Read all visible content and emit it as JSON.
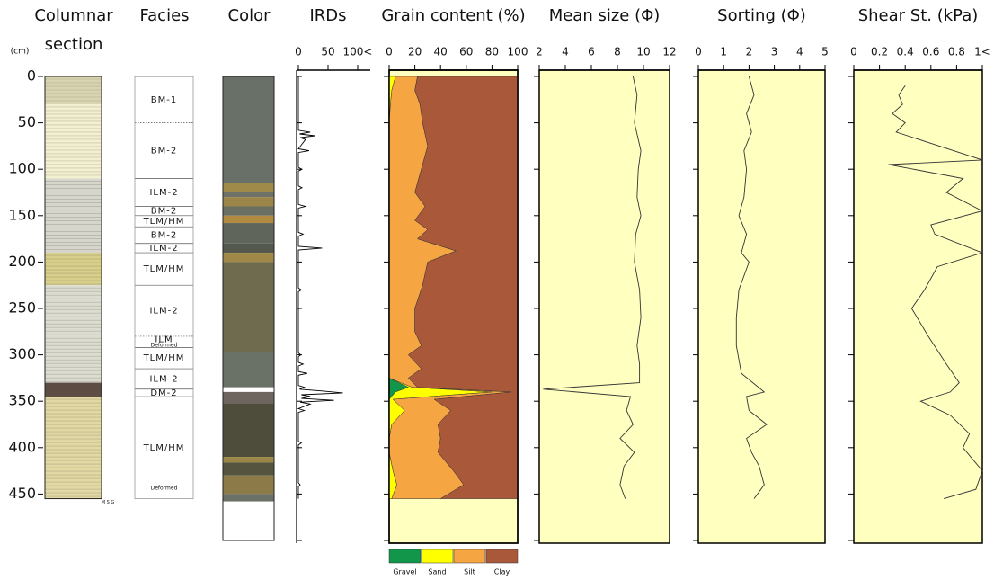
{
  "depth_axis": {
    "unit": "(cm)",
    "ylim": [
      0,
      500
    ],
    "yticks": [
      0,
      50,
      100,
      150,
      200,
      250,
      300,
      350,
      400,
      450
    ]
  },
  "columnar_section": {
    "title": [
      "Columnar",
      "section"
    ],
    "scale_label": "M S G",
    "layers": [
      {
        "top": 0,
        "bottom": 30,
        "color": "#d9d4b0"
      },
      {
        "top": 30,
        "bottom": 110,
        "color": "#f3f0d2"
      },
      {
        "top": 110,
        "bottom": 190,
        "color": "#d6d6cc"
      },
      {
        "top": 190,
        "bottom": 225,
        "color": "#d8cf8a"
      },
      {
        "top": 225,
        "bottom": 330,
        "color": "#dcdcd0"
      },
      {
        "top": 330,
        "bottom": 345,
        "color": "#5c4c42"
      },
      {
        "top": 345,
        "bottom": 455,
        "color": "#e2d8a4"
      }
    ]
  },
  "facies": {
    "title": "Facies",
    "units": [
      {
        "label": "BM-1",
        "top": 0,
        "bottom": 50
      },
      {
        "label": "BM-2",
        "top": 50,
        "bottom": 110,
        "dotted_top": true
      },
      {
        "label": "ILM-2",
        "top": 110,
        "bottom": 140
      },
      {
        "label": "BM-2",
        "top": 140,
        "bottom": 150
      },
      {
        "label": "TLM/HM",
        "top": 150,
        "bottom": 162
      },
      {
        "label": "BM-2",
        "top": 162,
        "bottom": 180
      },
      {
        "label": "ILM-2",
        "top": 180,
        "bottom": 190
      },
      {
        "label": "TLM/HM",
        "top": 190,
        "bottom": 225
      },
      {
        "label": "ILM-2",
        "top": 225,
        "bottom": 280
      },
      {
        "label": "ILM",
        "note": "Deformed",
        "top": 280,
        "bottom": 292,
        "dotted_top": true
      },
      {
        "label": "TLM/HM",
        "top": 292,
        "bottom": 315
      },
      {
        "label": "ILM-2",
        "top": 315,
        "bottom": 337
      },
      {
        "label": "DM-2",
        "top": 337,
        "bottom": 345
      },
      {
        "label": "TLM/HM",
        "note": "Deformed",
        "top": 345,
        "bottom": 455
      }
    ]
  },
  "color_column": {
    "title": "Color",
    "segments": [
      {
        "top": 0,
        "bottom": 115,
        "color": "#697067"
      },
      {
        "top": 115,
        "bottom": 125,
        "color": "#a08a4a"
      },
      {
        "top": 125,
        "bottom": 130,
        "color": "#6f7266"
      },
      {
        "top": 130,
        "bottom": 140,
        "color": "#9c8548"
      },
      {
        "top": 140,
        "bottom": 150,
        "color": "#6a6f63"
      },
      {
        "top": 150,
        "bottom": 158,
        "color": "#b08a40"
      },
      {
        "top": 158,
        "bottom": 180,
        "color": "#5f655a"
      },
      {
        "top": 180,
        "bottom": 190,
        "color": "#55584d"
      },
      {
        "top": 190,
        "bottom": 200,
        "color": "#a08848"
      },
      {
        "top": 200,
        "bottom": 297,
        "color": "#6e6b4f"
      },
      {
        "top": 297,
        "bottom": 335,
        "color": "#6a7268"
      },
      {
        "top": 335,
        "bottom": 340,
        "color": "#ffffff"
      },
      {
        "top": 340,
        "bottom": 352,
        "color": "#6e6560"
      },
      {
        "top": 352,
        "bottom": 410,
        "color": "#4e4d3c"
      },
      {
        "top": 410,
        "bottom": 416,
        "color": "#9c8646"
      },
      {
        "top": 416,
        "bottom": 430,
        "color": "#55553f"
      },
      {
        "top": 430,
        "bottom": 450,
        "color": "#8c7a48"
      },
      {
        "top": 450,
        "bottom": 458,
        "color": "#6a7268"
      },
      {
        "top": 458,
        "bottom": 500,
        "color": "#ffffff"
      }
    ]
  },
  "chart_data": [
    {
      "type": "line",
      "title": "IRDs",
      "frame": false,
      "xlim": [
        0,
        100
      ],
      "xticks": [
        0,
        50,
        {
          "value": 100,
          "label": "100<"
        }
      ],
      "ylim": [
        0,
        500
      ],
      "yticks": [
        0,
        50,
        100,
        150,
        200,
        250,
        300,
        350,
        400,
        450,
        500
      ],
      "depth": [
        0,
        58,
        60,
        62,
        64,
        66,
        68,
        78,
        80,
        82,
        98,
        100,
        102,
        118,
        120,
        122,
        138,
        140,
        142,
        168,
        170,
        172,
        183,
        185,
        187,
        228,
        230,
        232,
        298,
        300,
        302,
        308,
        310,
        312,
        318,
        320,
        322,
        333,
        335,
        337,
        339,
        341,
        343,
        345,
        347,
        349,
        351,
        353,
        358,
        360,
        362,
        393,
        395,
        397,
        438,
        440,
        442,
        455
      ],
      "color": "#000000",
      "values": [
        0,
        0,
        20,
        2,
        28,
        3,
        12,
        0,
        18,
        0,
        0,
        6,
        0,
        0,
        6,
        0,
        0,
        12,
        0,
        0,
        8,
        0,
        0,
        40,
        0,
        0,
        5,
        0,
        0,
        4,
        0,
        0,
        8,
        0,
        0,
        15,
        0,
        0,
        10,
        2,
        40,
        75,
        5,
        20,
        5,
        60,
        3,
        20,
        0,
        10,
        0,
        0,
        5,
        0,
        0,
        3,
        0,
        0
      ]
    },
    {
      "type": "area",
      "title": "Grain content (%)",
      "frame": true,
      "background": "#ffffc0",
      "xlim": [
        0,
        100
      ],
      "xticks": [
        0,
        20,
        40,
        60,
        80,
        100
      ],
      "ylim": [
        0,
        500
      ],
      "yticks": [
        0,
        50,
        100,
        150,
        200,
        250,
        300,
        350,
        400,
        450,
        500
      ],
      "depth": [
        0,
        15,
        30,
        50,
        75,
        100,
        125,
        140,
        155,
        165,
        175,
        188,
        200,
        225,
        250,
        275,
        290,
        300,
        315,
        325,
        335,
        340,
        348,
        360,
        375,
        390,
        405,
        425,
        440,
        455
      ],
      "series": [
        {
          "name": "Gravel",
          "color": "#12964a",
          "values": [
            0,
            0,
            0,
            0,
            0,
            0,
            0,
            0,
            0,
            0,
            0,
            0,
            0,
            0,
            0,
            0,
            0,
            0,
            0,
            0,
            15,
            5,
            0,
            0,
            0,
            0,
            0,
            0,
            0,
            0
          ]
        },
        {
          "name": "Sand",
          "color": "#ffff00",
          "values": [
            5,
            2,
            1,
            0,
            0,
            0,
            0,
            0,
            0,
            0,
            0,
            0,
            0,
            0,
            0,
            0,
            0,
            0,
            0,
            0,
            3,
            75,
            3,
            12,
            2,
            0,
            0,
            3,
            6,
            2
          ]
        },
        {
          "name": "Silt",
          "color": "#f5a542",
          "values": [
            17,
            18,
            23,
            26,
            30,
            25,
            20,
            28,
            20,
            30,
            22,
            52,
            30,
            26,
            20,
            20,
            25,
            15,
            25,
            15,
            4,
            15,
            32,
            36,
            36,
            40,
            38,
            47,
            52,
            38
          ]
        },
        {
          "name": "Clay",
          "color": "#a9583a",
          "values": [
            78,
            80,
            76,
            74,
            70,
            75,
            80,
            72,
            80,
            70,
            78,
            48,
            70,
            74,
            80,
            80,
            75,
            85,
            75,
            85,
            78,
            5,
            65,
            52,
            62,
            60,
            62,
            50,
            42,
            60
          ]
        }
      ]
    },
    {
      "type": "line",
      "title": "Mean size (Φ)",
      "frame": true,
      "background": "#ffffc0",
      "xlim": [
        2,
        12
      ],
      "xticks": [
        2,
        4,
        6,
        8,
        10,
        12
      ],
      "ylim": [
        0,
        500
      ],
      "yticks": [
        0,
        50,
        100,
        150,
        200,
        250,
        300,
        350,
        400,
        450,
        500
      ],
      "depth": [
        0,
        20,
        50,
        80,
        100,
        130,
        150,
        170,
        200,
        230,
        260,
        290,
        310,
        330,
        337,
        345,
        360,
        375,
        390,
        405,
        420,
        440,
        455
      ],
      "color": "#333333",
      "values": [
        9.2,
        9.5,
        9.3,
        9.8,
        9.6,
        9.5,
        9.8,
        9.4,
        9.3,
        9.7,
        9.8,
        9.5,
        9.7,
        9.7,
        2.3,
        9.0,
        8.7,
        9.2,
        8.2,
        9.3,
        8.5,
        8.2,
        8.6
      ]
    },
    {
      "type": "line",
      "title": "Sorting (Φ)",
      "frame": true,
      "background": "#ffffc0",
      "xlim": [
        0,
        5
      ],
      "xticks": [
        0,
        1,
        2,
        3,
        4,
        5
      ],
      "ylim": [
        0,
        500
      ],
      "yticks": [
        0,
        50,
        100,
        150,
        200,
        250,
        300,
        350,
        400,
        450,
        500
      ],
      "depth": [
        0,
        20,
        40,
        60,
        80,
        100,
        130,
        150,
        170,
        190,
        200,
        230,
        260,
        290,
        320,
        340,
        345,
        360,
        375,
        390,
        405,
        420,
        440,
        455
      ],
      "color": "#333333",
      "values": [
        2.0,
        2.2,
        1.9,
        2.1,
        1.8,
        1.9,
        1.8,
        1.6,
        1.9,
        1.7,
        2.0,
        1.6,
        1.5,
        1.5,
        1.7,
        2.6,
        1.9,
        2.0,
        2.7,
        1.9,
        2.1,
        2.4,
        2.6,
        2.2
      ]
    },
    {
      "type": "line",
      "title": "Shear St. (kPa)",
      "frame": true,
      "background": "#ffffc0",
      "xlim": [
        0,
        1
      ],
      "xticks": [
        0,
        0.2,
        0.4,
        0.6,
        0.8,
        {
          "value": 1,
          "label": "1<"
        }
      ],
      "ylim": [
        0,
        500
      ],
      "yticks": [
        0,
        50,
        100,
        150,
        200,
        250,
        300,
        350,
        400,
        450,
        500
      ],
      "depth": [
        10,
        20,
        30,
        40,
        50,
        60,
        90,
        95,
        110,
        125,
        145,
        160,
        170,
        190,
        205,
        230,
        250,
        280,
        310,
        330,
        340,
        350,
        365,
        385,
        400,
        425,
        445,
        455
      ],
      "color": "#333333",
      "values": [
        0.4,
        0.35,
        0.38,
        0.3,
        0.4,
        0.33,
        1,
        0.27,
        0.85,
        0.72,
        1,
        0.6,
        0.63,
        1,
        0.65,
        0.55,
        0.45,
        0.58,
        0.72,
        0.82,
        0.75,
        0.52,
        0.75,
        0.9,
        0.85,
        1,
        0.95,
        0.7
      ]
    }
  ]
}
